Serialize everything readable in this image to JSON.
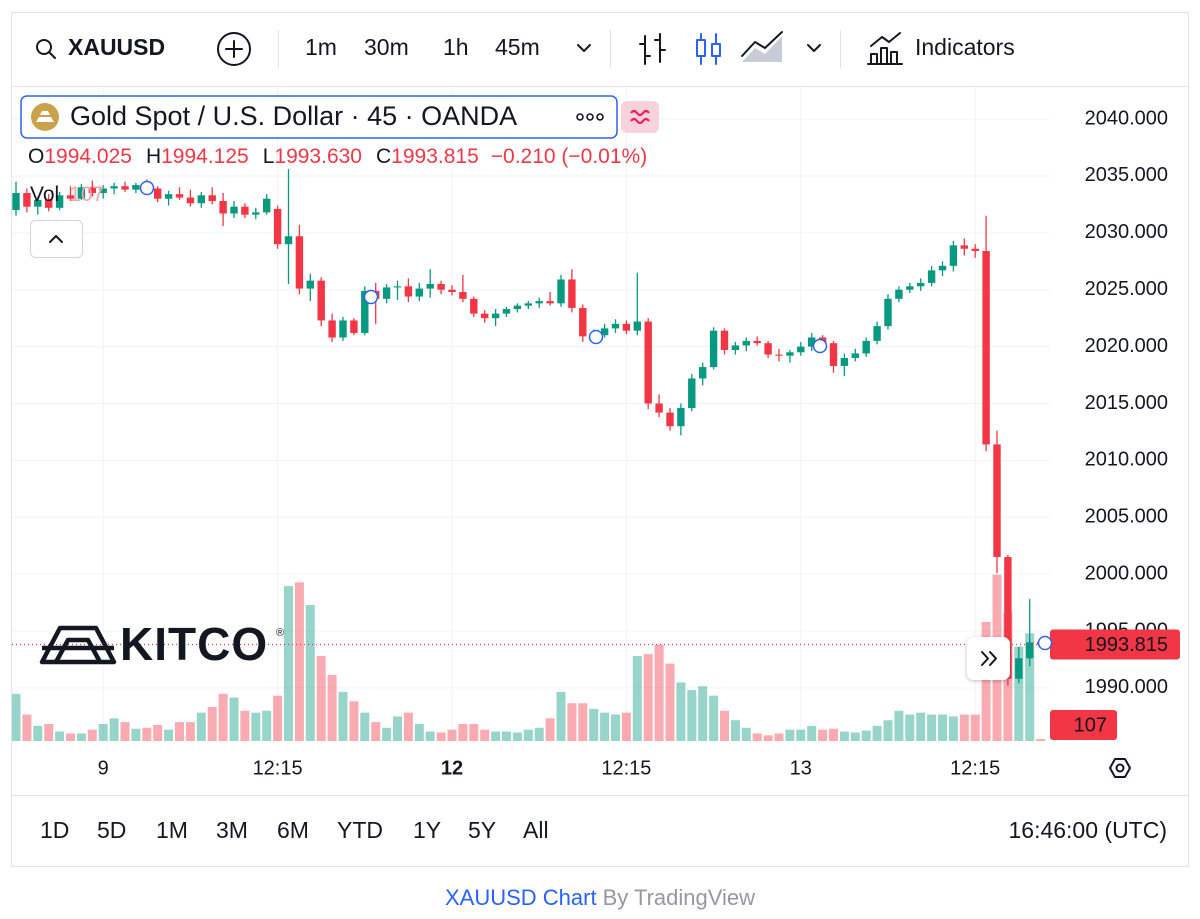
{
  "chart_data": {
    "type": "candlestick",
    "symbol": "XAUUSD",
    "timeframes": [
      "1m",
      "30m",
      "1h",
      "45m"
    ],
    "active_timeframe": "45m",
    "indicators_label": "Indicators",
    "title": "Gold Spot / U.S. Dollar · 45 · OANDA",
    "ohlc_legend": [
      {
        "key": "O",
        "label": "1994.025"
      },
      {
        "key": "H",
        "label": "1994.125"
      },
      {
        "key": "L",
        "label": "1993.630"
      },
      {
        "key": "C",
        "label": "1993.815"
      }
    ],
    "change": "−0.210 (−0.01%)",
    "volume_label": "Vol",
    "watermark": "KITCO",
    "watermark_reg": "®",
    "categories": [
      null,
      null,
      null,
      null,
      null,
      null,
      null,
      null,
      "9",
      null,
      null,
      null,
      null,
      null,
      null,
      null,
      null,
      null,
      null,
      null,
      null,
      null,
      null,
      null,
      "12:15",
      null,
      null,
      null,
      null,
      null,
      null,
      null,
      null,
      null,
      null,
      null,
      null,
      null,
      null,
      null,
      "12",
      null,
      null,
      null,
      null,
      null,
      null,
      null,
      null,
      null,
      null,
      null,
      null,
      null,
      null,
      null,
      "12:15",
      null,
      null,
      null,
      null,
      null,
      null,
      null,
      null,
      null,
      null,
      null,
      null,
      null,
      null,
      null,
      "13",
      null,
      null,
      null,
      null,
      null,
      null,
      null,
      null,
      null,
      null,
      null,
      null,
      null,
      null,
      null,
      "12:15",
      null,
      null,
      null,
      null,
      null,
      null
    ],
    "open": [
      2032.0,
      2033.5,
      2032.3,
      2032.9,
      2032.2,
      2033.3,
      2033.0,
      2034.0,
      2033.5,
      2033.9,
      2034.1,
      2033.8,
      2034.2,
      2033.9,
      2033.0,
      2033.4,
      2033.1,
      2032.6,
      2033.3,
      2032.8,
      2031.7,
      2032.3,
      2031.6,
      2031.8,
      2032.1,
      2029.0,
      2029.7,
      2025.1,
      2025.8,
      2022.3,
      2020.8,
      2022.3,
      2021.2,
      2024.9,
      2024.2,
      2025.2,
      2025.3,
      2024.4,
      2025.1,
      2025.5,
      2025.0,
      2024.8,
      2024.2,
      2022.9,
      2022.5,
      2022.9,
      2023.3,
      2023.6,
      2023.8,
      2024.0,
      2023.8,
      2025.9,
      2023.4,
      2020.9,
      2021.0,
      2021.6,
      2022.0,
      2021.4,
      2022.2,
      2015.0,
      2014.2,
      2013.0,
      2014.6,
      2017.2,
      2018.2,
      2021.4,
      2019.7,
      2020.1,
      2020.5,
      2020.3,
      2019.3,
      2019.2,
      2019.5,
      2020.0,
      2020.8,
      2020.3,
      2018.3,
      2019.0,
      2019.4,
      2020.5,
      2021.8,
      2024.2,
      2025.0,
      2025.3,
      2025.6,
      2026.7,
      2027.1,
      2028.9,
      2028.6,
      2028.4,
      2011.4,
      2001.5,
      1990.8,
      1992.6,
      1994.025
    ],
    "high": [
      2034.5,
      2033.9,
      2033.2,
      2033.4,
      2033.6,
      2034.1,
      2034.3,
      2034.6,
      2034.2,
      2034.4,
      2034.5,
      2034.4,
      2034.7,
      2034.1,
      2033.7,
      2034.0,
      2033.8,
      2033.6,
      2034.0,
      2033.5,
      2032.8,
      2032.6,
      2032.2,
      2033.4,
      2032.4,
      2035.6,
      2030.7,
      2026.4,
      2026.1,
      2022.9,
      2022.6,
      2022.5,
      2025.3,
      2025.6,
      2025.5,
      2025.8,
      2026.0,
      2025.6,
      2026.8,
      2025.8,
      2025.4,
      2026.3,
      2024.4,
      2023.2,
      2023.3,
      2023.5,
      2023.8,
      2024.0,
      2024.3,
      2024.8,
      2026.3,
      2026.8,
      2023.7,
      2021.5,
      2022.0,
      2022.4,
      2022.3,
      2026.5,
      2022.5,
      2015.8,
      2014.6,
      2015.0,
      2017.6,
      2018.6,
      2021.7,
      2021.6,
      2020.4,
      2020.8,
      2020.9,
      2020.5,
      2019.8,
      2019.7,
      2020.4,
      2021.2,
      2021.0,
      2020.5,
      2019.4,
      2019.8,
      2020.8,
      2022.2,
      2024.6,
      2025.3,
      2025.6,
      2026.0,
      2027.1,
      2027.5,
      2029.3,
      2029.5,
      2029.0,
      2031.5,
      2012.6,
      2001.7,
      1993.6,
      1997.8,
      1994.125
    ],
    "low": [
      2031.5,
      2031.8,
      2031.6,
      2031.9,
      2032.0,
      2032.8,
      2032.9,
      2033.2,
      2033.0,
      2033.4,
      2033.6,
      2033.5,
      2033.6,
      2032.7,
      2032.4,
      2032.9,
      2032.3,
      2032.2,
      2032.5,
      2030.6,
      2031.3,
      2031.3,
      2031.2,
      2031.6,
      2028.6,
      2025.5,
      2024.6,
      2024.0,
      2021.8,
      2020.4,
      2020.5,
      2021.0,
      2021.0,
      2022.0,
      2023.8,
      2024.1,
      2023.9,
      2024.0,
      2024.3,
      2024.6,
      2024.5,
      2023.9,
      2022.6,
      2022.1,
      2021.8,
      2022.6,
      2023.0,
      2023.3,
      2023.4,
      2023.6,
      2023.5,
      2023.0,
      2020.4,
      2020.4,
      2020.8,
      2021.2,
      2021.1,
      2021.0,
      2014.5,
      2013.8,
      2012.6,
      2012.2,
      2014.3,
      2016.6,
      2018.0,
      2019.3,
      2019.3,
      2019.6,
      2020.1,
      2019.0,
      2018.7,
      2018.6,
      2019.2,
      2019.6,
      2020.0,
      2017.7,
      2017.4,
      2018.7,
      2019.1,
      2020.2,
      2021.5,
      2023.9,
      2024.7,
      2024.9,
      2025.3,
      2026.2,
      2026.6,
      2028.0,
      2027.8,
      2010.8,
      2000.1,
      1990.2,
      1990.4,
      1991.9,
      1993.63
    ],
    "close": [
      2033.5,
      2032.3,
      2032.9,
      2032.2,
      2033.3,
      2033.0,
      2034.0,
      2033.5,
      2033.9,
      2034.1,
      2033.8,
      2034.2,
      2033.9,
      2033.0,
      2033.4,
      2033.1,
      2032.6,
      2033.3,
      2032.8,
      2031.7,
      2032.3,
      2031.6,
      2031.8,
      2033.0,
      2029.0,
      2029.7,
      2025.1,
      2025.8,
      2022.3,
      2020.8,
      2022.3,
      2021.2,
      2024.9,
      2024.2,
      2025.2,
      2025.3,
      2024.4,
      2025.1,
      2025.5,
      2025.0,
      2024.8,
      2024.2,
      2022.9,
      2022.5,
      2022.9,
      2023.3,
      2023.6,
      2023.8,
      2024.0,
      2023.8,
      2025.9,
      2023.4,
      2020.9,
      2021.0,
      2021.6,
      2022.0,
      2021.4,
      2022.2,
      2015.0,
      2014.2,
      2013.0,
      2014.6,
      2017.2,
      2018.2,
      2021.4,
      2019.7,
      2020.1,
      2020.5,
      2020.3,
      2019.3,
      2019.2,
      2019.5,
      2020.0,
      2020.8,
      2020.3,
      2018.3,
      2019.0,
      2019.4,
      2020.5,
      2021.8,
      2024.2,
      2025.0,
      2025.3,
      2025.6,
      2026.7,
      2027.1,
      2028.9,
      2028.6,
      2028.4,
      2011.4,
      2001.5,
      1990.8,
      1992.6,
      1994.0,
      1993.815
    ],
    "volume": [
      2500,
      1400,
      800,
      900,
      500,
      400,
      400,
      600,
      900,
      1200,
      1000,
      650,
      700,
      850,
      600,
      1000,
      1000,
      1500,
      1800,
      2500,
      2300,
      1600,
      1500,
      1600,
      2400,
      8200,
      8400,
      7200,
      4500,
      3500,
      2600,
      2100,
      1500,
      1000,
      700,
      1300,
      1500,
      900,
      500,
      450,
      600,
      900,
      900,
      600,
      500,
      500,
      450,
      600,
      700,
      1200,
      2600,
      2000,
      2000,
      1700,
      1500,
      1400,
      1500,
      4500,
      4600,
      5100,
      4100,
      3100,
      2700,
      2900,
      2400,
      1600,
      1100,
      700,
      400,
      300,
      400,
      600,
      600,
      800,
      600,
      650,
      500,
      450,
      550,
      800,
      1100,
      1600,
      1400,
      1500,
      1400,
      1400,
      1300,
      1400,
      1400,
      6300,
      8800,
      6800,
      5000,
      5700,
      107
    ],
    "up_color": "#089981",
    "down_color": "#f23645",
    "ylim": [
      1985.33,
      2042.82
    ],
    "yticks": [
      {
        "value": 1990,
        "label": "1990.000"
      },
      {
        "value": 1995,
        "label": "1995.000"
      },
      {
        "value": 2000,
        "label": "2000.000"
      },
      {
        "value": 2005,
        "label": "2005.000"
      },
      {
        "value": 2010,
        "label": "2010.000"
      },
      {
        "value": 2015,
        "label": "2015.000"
      },
      {
        "value": 2020,
        "label": "2020.000"
      },
      {
        "value": 2025,
        "label": "2025.000"
      },
      {
        "value": 2030,
        "label": "2030.000"
      },
      {
        "value": 2035,
        "label": "2035.000"
      },
      {
        "value": 2040,
        "label": "2040.000"
      }
    ],
    "volume_lim": [
      0,
      9000
    ],
    "grid": true,
    "ranges": [
      "1D",
      "5D",
      "1M",
      "3M",
      "6M",
      "YTD",
      "1Y",
      "5Y",
      "All"
    ],
    "clock": "16:46:00 (UTC)",
    "footer_link": "XAUUSD Chart",
    "footer_by": "By TradingView"
  }
}
